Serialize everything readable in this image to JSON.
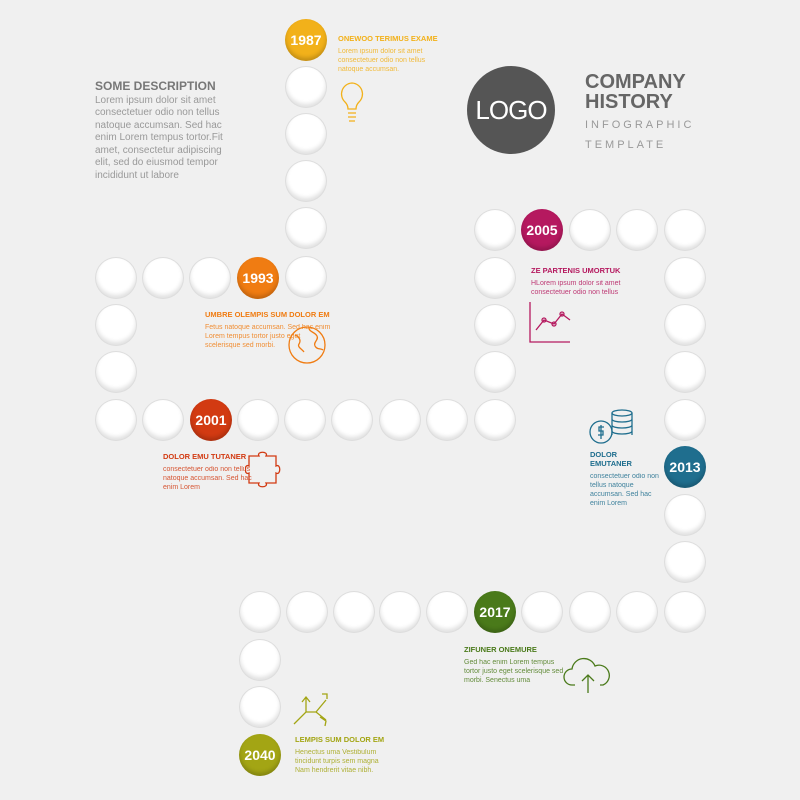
{
  "header": {
    "logo": "LOGO",
    "title_line1": "COMPANY",
    "title_line2": "HISTORY",
    "subtitle_line1": "INFOGRAPHIC",
    "subtitle_line2": "TEMPLATE"
  },
  "description": {
    "title": "SOME DESCRIPTION",
    "text": "Lorem ipsum dolor sit amet consectetuer odio non tellus natoque accumsan. Sed hac enim Lorem tempus tortor.Fit amet, consectetur adipiscing elit, sed do eiusmod tempor incididunt ut labore"
  },
  "milestones": [
    {
      "year": "1987",
      "color": "#f2b11a",
      "title": "ONEWOO TERIMUS EXAME",
      "text": "Lorem ipsum dolor sit amet consectetuer odio non tellus natoque accumsan.",
      "icon": "lightbulb-icon"
    },
    {
      "year": "1993",
      "color": "#f07c12",
      "title": "UMBRE OLEMPIS SUM DOLOR EM",
      "text": "Fetus natoque accumsan. Sed hac enim Lorem tempus tortor justo eget scelerisque sed morbi.",
      "icon": "globe-icon"
    },
    {
      "year": "2001",
      "color": "#d23a12",
      "title": "DOLOR EMU TUTANER",
      "text": "consectetuer odio non tellus natoque accumsan. Sed hac enim Lorem",
      "icon": "puzzle-icon"
    },
    {
      "year": "2005",
      "color": "#b5195f",
      "title": "ZE PARTENIS UMORTUK",
      "text": "HLorem ipsum dolor sit amet consectetuer odio non tellus",
      "icon": "line-chart-icon"
    },
    {
      "year": "2013",
      "color": "#1f6e8e",
      "title": "DOLOR EMUTANER",
      "text": "consectetuer odio non tellus natoque accumsan. Sed hac enim Lorem",
      "icon": "coins-icon"
    },
    {
      "year": "2017",
      "color": "#4a7a1a",
      "title": "ZIFUNER ONEMURE",
      "text": "Ged hac enim Lorem tempus tortor justo eget scelerisque sed morbi. Senectus uma",
      "icon": "cloud-upload-icon"
    },
    {
      "year": "2040",
      "color": "#a3a514",
      "title": "LEMPIS SUM DOLOR EM",
      "text": "Henectus uma Vestibulum tincidunt turpis sem magna Nam hendrerit vitae nibh.",
      "icon": "arrows-icon"
    }
  ]
}
